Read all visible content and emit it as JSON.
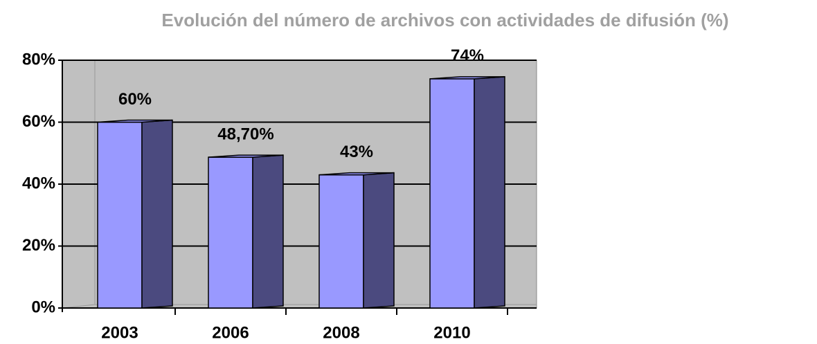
{
  "chart_data": {
    "type": "bar3d",
    "title": "Evolución del número de archivos con actividades de difusión (%)",
    "categories": [
      "2003",
      "2006",
      "2008",
      "2010"
    ],
    "values": [
      60,
      48.7,
      43,
      74
    ],
    "value_labels": [
      "60%",
      "48,70%",
      "43%",
      "74%"
    ],
    "color": "#9999ff",
    "side_color": "#4b4a7f",
    "ylim": [
      0,
      80
    ],
    "yticks": [
      {
        "value": 0,
        "label": "0%"
      },
      {
        "value": 20,
        "label": "20%"
      },
      {
        "value": 40,
        "label": "40%"
      },
      {
        "value": 60,
        "label": "60%"
      },
      {
        "value": 80,
        "label": "80%"
      }
    ],
    "grid": true
  }
}
